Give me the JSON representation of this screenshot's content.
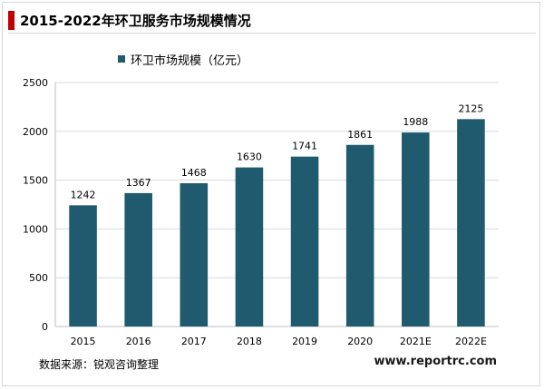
{
  "header": {
    "title": "2015-2022年环卫服务市场规模情况"
  },
  "footer": {
    "source": "数据来源：锐观咨询整理",
    "url": "www.reportrc.com"
  },
  "colors": {
    "bar": "#1f5a6e",
    "title_accent": "#c00000",
    "grid": "#d9d9d9"
  },
  "chart_data": {
    "type": "bar",
    "title": "",
    "xlabel": "",
    "ylabel": "",
    "categories": [
      "2015",
      "2016",
      "2017",
      "2018",
      "2019",
      "2020",
      "2021E",
      "2022E"
    ],
    "series": [
      {
        "name": "环卫市场规模（亿元）",
        "values": [
          1242,
          1367,
          1468,
          1630,
          1741,
          1861,
          1988,
          2125
        ]
      }
    ],
    "ylim": [
      0,
      2500
    ],
    "yticks": [
      0,
      500,
      1000,
      1500,
      2000,
      2500
    ],
    "grid": true,
    "legend": "top-left"
  }
}
